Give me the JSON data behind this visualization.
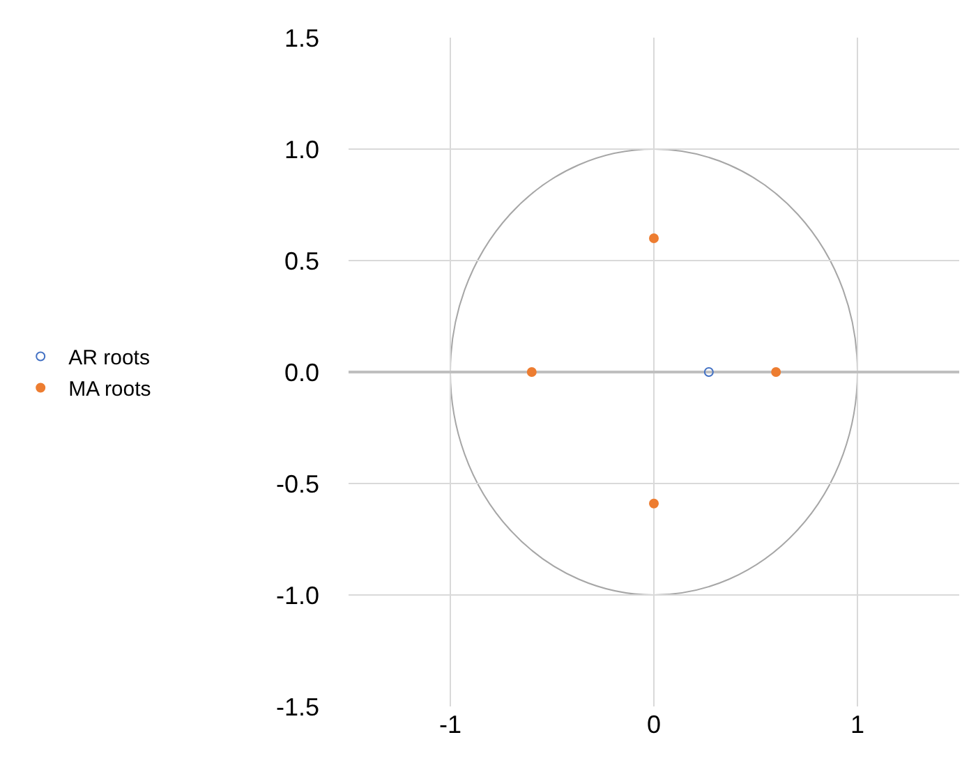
{
  "chart_data": {
    "type": "scatter",
    "xlim": [
      -1.5,
      1.5
    ],
    "xticks": [
      -1,
      0,
      1
    ],
    "ylim": [
      -1.5,
      1.5
    ],
    "yticks": [
      1.5,
      {
        "value": 1,
        "label": "1.0"
      },
      0.5,
      {
        "value": 0,
        "label": "0.0"
      },
      -0.5,
      {
        "value": -1,
        "label": "-1.0"
      },
      -1.5
    ],
    "grid": true,
    "legend": "left",
    "series": [
      {
        "name": "AR roots",
        "color": "#4472c4",
        "marker": "circle-open",
        "x": [
          0.27
        ],
        "values": [
          0
        ]
      },
      {
        "name": "MA roots",
        "color": "#ed7d31",
        "marker": "circle",
        "x": [
          -0.6,
          0.6,
          0,
          0
        ],
        "values": [
          0,
          0,
          0.6,
          -0.59
        ]
      }
    ]
  }
}
